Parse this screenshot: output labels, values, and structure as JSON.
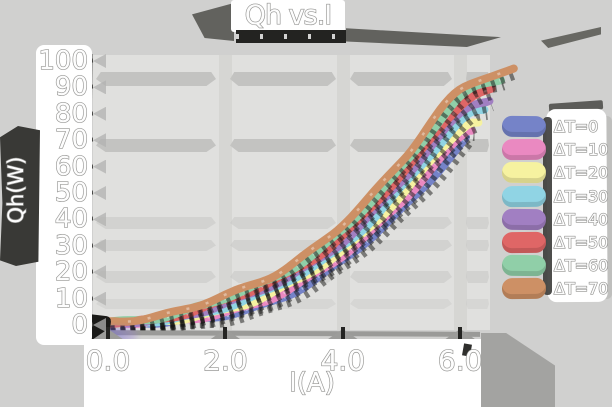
{
  "chart_data": {
    "type": "line",
    "title": "Qh vs.I",
    "xlabel": "I(A)",
    "ylabel": "Qh(W)",
    "x_ticks": [
      0.0,
      2.0,
      4.0,
      6.0
    ],
    "x_tick_labels": [
      "0.0",
      "2.0",
      "4.0",
      "6.0"
    ],
    "y_ticks": [
      0,
      10,
      20,
      30,
      40,
      50,
      60,
      70,
      80,
      90,
      100
    ],
    "y_tick_labels": [
      "0",
      "10",
      "20",
      "30",
      "40",
      "50",
      "60",
      "70",
      "80",
      "90",
      "100"
    ],
    "xlim": [
      0,
      7.0
    ],
    "ylim": [
      0,
      100
    ],
    "grid": true,
    "legend_position": "right",
    "style": "xkcd-sketch, hollow outlined text, gray background, thick pastel lines with dark offset shadows",
    "x": [
      0,
      1,
      2,
      3,
      4,
      5,
      6
    ],
    "series": [
      {
        "name": "ΔT=0",
        "color": "#7583c8",
        "values": [
          0,
          1,
          4,
          11,
          24,
          44,
          68
        ],
        "end": [
          6.1,
          71
        ]
      },
      {
        "name": "ΔT=10",
        "color": "#ea89c1",
        "values": [
          0.2,
          1.4,
          5,
          12.5,
          26,
          47,
          71
        ],
        "end": [
          6.2,
          74
        ]
      },
      {
        "name": "ΔT=20",
        "color": "#f6f2a0",
        "values": [
          0.4,
          1.8,
          6,
          14,
          28,
          49.5,
          74
        ],
        "end": [
          6.3,
          76.5
        ]
      },
      {
        "name": "ΔT=30",
        "color": "#90d4e4",
        "values": [
          0.6,
          2.2,
          7,
          15.5,
          30,
          52,
          77
        ],
        "end": [
          6.4,
          81
        ]
      },
      {
        "name": "ΔT=40",
        "color": "#a17fc2",
        "values": [
          0.8,
          2.6,
          8,
          17,
          32,
          54.5,
          80
        ],
        "end": [
          6.5,
          85
        ]
      },
      {
        "name": "ΔT=50",
        "color": "#df6666",
        "values": [
          1,
          3,
          9,
          18.5,
          34,
          57,
          83
        ],
        "end": [
          6.55,
          89
        ]
      },
      {
        "name": "ΔT=60",
        "color": "#90cfa8",
        "values": [
          1.2,
          3.4,
          10,
          20,
          36,
          59.5,
          86
        ],
        "end": [
          6.7,
          93.5
        ]
      },
      {
        "name": "ΔT=70",
        "color": "#cd9065",
        "values": [
          1.4,
          3.8,
          11,
          21.5,
          38,
          62,
          89
        ],
        "end": [
          6.9,
          97
        ]
      }
    ]
  }
}
